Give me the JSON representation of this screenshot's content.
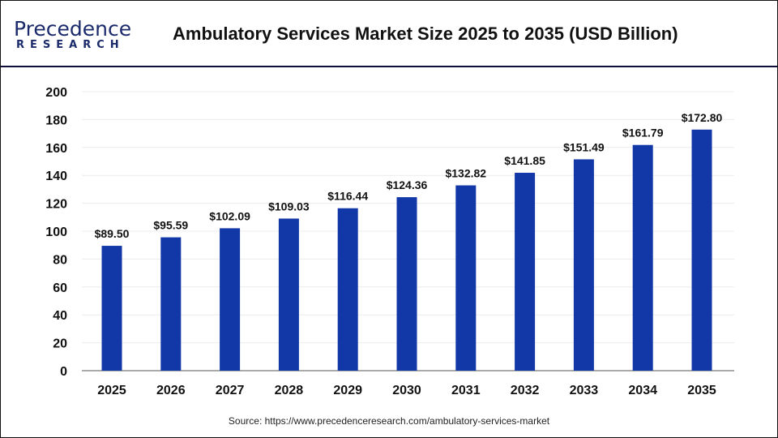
{
  "logo": {
    "line1": "Precedence",
    "line2": "RESEARCH"
  },
  "title": "Ambulatory Services Market Size 2025 to 2035 (USD Billion)",
  "source": "Source: https://www.precedenceresearch.com/ambulatory-services-market",
  "colors": {
    "bar": "#1237a6",
    "header_rule": "#0b0f3a"
  },
  "chart_data": {
    "type": "bar",
    "title": "Ambulatory Services Market Size 2025 to 2035 (USD Billion)",
    "categories": [
      "2025",
      "2026",
      "2027",
      "2028",
      "2029",
      "2030",
      "2031",
      "2032",
      "2033",
      "2034",
      "2035"
    ],
    "values": [
      89.5,
      95.59,
      102.09,
      109.03,
      116.44,
      124.36,
      132.82,
      141.85,
      151.49,
      161.79,
      172.8
    ],
    "data_labels": [
      "$89.50",
      "$95.59",
      "$102.09",
      "$109.03",
      "$116.44",
      "$124.36",
      "$132.82",
      "$141.85",
      "$151.49",
      "$161.79",
      "$172.80"
    ],
    "yticks": [
      "0",
      "20",
      "40",
      "60",
      "80",
      "100",
      "120",
      "140",
      "160",
      "180",
      "200"
    ],
    "ylim": [
      0,
      200
    ],
    "grid": true,
    "xlabel": "",
    "ylabel": ""
  }
}
